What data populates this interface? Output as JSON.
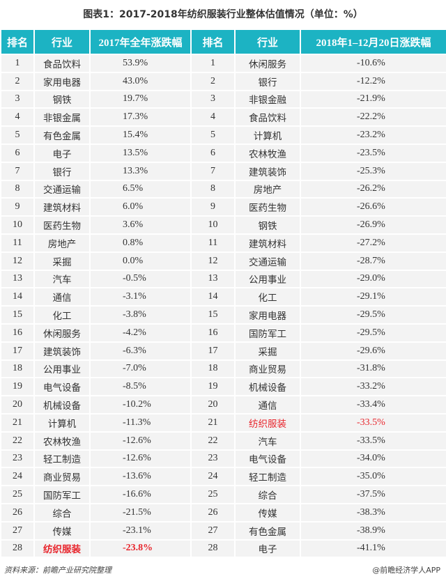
{
  "title": "图表1：2017-2018年纺织服装行业整体估值情况（单位：%）",
  "colors": {
    "header_bg": "#1cb3c3",
    "highlight": "#e8262d",
    "row_bg": "#f3f3f3"
  },
  "chart_data": {
    "type": "table",
    "headers": [
      "排名",
      "行业",
      "2017年全年涨跌幅",
      "排名",
      "行业",
      "2018年1–12月20日涨跌幅"
    ],
    "highlight_industry": "纺织服装",
    "rows": [
      [
        "1",
        "食品饮料",
        "53.9%",
        "1",
        "休闲服务",
        "-10.6%"
      ],
      [
        "2",
        "家用电器",
        "43.0%",
        "2",
        "银行",
        "-12.2%"
      ],
      [
        "3",
        "钢铁",
        "19.7%",
        "3",
        "非银金融",
        "-21.9%"
      ],
      [
        "4",
        "非银金属",
        "17.3%",
        "4",
        "食品饮料",
        "-22.2%"
      ],
      [
        "5",
        "有色金属",
        "15.4%",
        "5",
        "计算机",
        "-23.2%"
      ],
      [
        "6",
        "电子",
        "13.5%",
        "6",
        "农林牧渔",
        "-23.5%"
      ],
      [
        "7",
        "银行",
        "13.3%",
        "7",
        "建筑装饰",
        "-25.3%"
      ],
      [
        "8",
        "交通运输",
        "6.5%",
        "8",
        "房地产",
        "-26.2%"
      ],
      [
        "9",
        "建筑材料",
        "6.0%",
        "9",
        "医药生物",
        "-26.6%"
      ],
      [
        "10",
        "医药生物",
        "3.6%",
        "10",
        "钢铁",
        "-26.9%"
      ],
      [
        "11",
        "房地产",
        "0.8%",
        "11",
        "建筑材料",
        "-27.2%"
      ],
      [
        "12",
        "采掘",
        "0.0%",
        "12",
        "交通运输",
        "-28.7%"
      ],
      [
        "13",
        "汽车",
        "-0.5%",
        "13",
        "公用事业",
        "-29.0%"
      ],
      [
        "14",
        "通信",
        "-3.1%",
        "14",
        "化工",
        "-29.1%"
      ],
      [
        "15",
        "化工",
        "-3.8%",
        "15",
        "家用电器",
        "-29.5%"
      ],
      [
        "16",
        "休闲服务",
        "-4.2%",
        "16",
        "国防军工",
        "-29.5%"
      ],
      [
        "17",
        "建筑装饰",
        "-6.3%",
        "17",
        "采掘",
        "-29.6%"
      ],
      [
        "18",
        "公用事业",
        "-7.0%",
        "18",
        "商业贸易",
        "-31.8%"
      ],
      [
        "19",
        "电气设备",
        "-8.5%",
        "19",
        "机械设备",
        "-33.2%"
      ],
      [
        "20",
        "机械设备",
        "-10.2%",
        "20",
        "通信",
        "-33.4%"
      ],
      [
        "21",
        "计算机",
        "-11.3%",
        "21",
        "纺织服装",
        "-33.5%"
      ],
      [
        "22",
        "农林牧渔",
        "-12.6%",
        "22",
        "汽车",
        "-33.5%"
      ],
      [
        "23",
        "轻工制造",
        "-12.6%",
        "23",
        "电气设备",
        "-34.0%"
      ],
      [
        "24",
        "商业贸易",
        "-13.6%",
        "24",
        "轻工制造",
        "-35.0%"
      ],
      [
        "25",
        "国防军工",
        "-16.6%",
        "25",
        "综合",
        "-37.5%"
      ],
      [
        "26",
        "综合",
        "-21.5%",
        "26",
        "传媒",
        "-38.3%"
      ],
      [
        "27",
        "传媒",
        "-23.1%",
        "27",
        "有色金属",
        "-38.9%"
      ],
      [
        "28",
        "纺织服装",
        "-23.8%",
        "28",
        "电子",
        "-41.1%"
      ]
    ]
  },
  "footer": {
    "source": "资料来源：前瞻产业研究院整理",
    "credit": "@前瞻经济学人APP"
  }
}
